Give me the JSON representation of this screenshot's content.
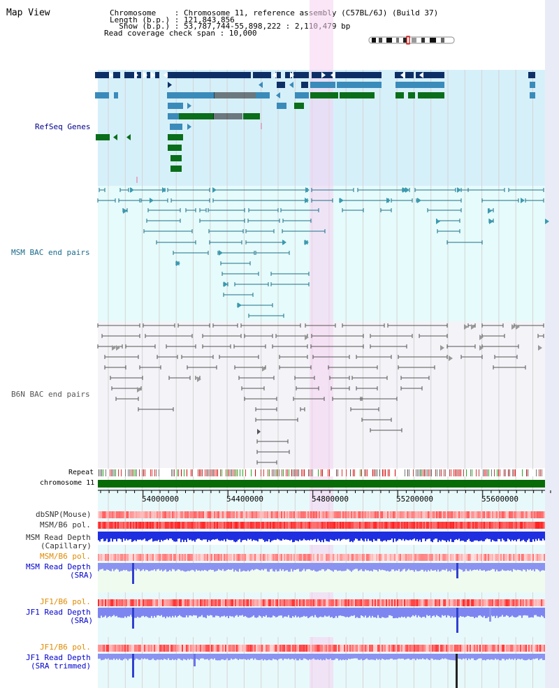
{
  "page": {
    "title": "Map View"
  },
  "header": {
    "chromosome_line": "Chromosome    : Chromosome 11, reference assembly (C57BL/6J) (Build 37)",
    "length_line": "Length (b.p.) : 121,843,856",
    "show_line": "  Show (b.p.) : 53,787,744-55,898,222 : 2,110,479 bp",
    "span_line": "Read coverage check span : 10,000"
  },
  "tracks": {
    "refseq": "RefSeq Genes",
    "msm_bac": "MSM BAC end pairs",
    "b6n_bac": "B6N BAC end pairs",
    "repeat": "Repeat",
    "chromosome": "chromosome 11",
    "dbsnp": "dbSNP(Mouse)",
    "msm_b6_pol_1": "MSM/B6 pol.",
    "msm_read_depth_cap": [
      "MSM Read Depth",
      "(Capillary)"
    ],
    "msm_b6_pol_2": "MSM/B6 pol.",
    "msm_read_depth_sra": [
      "MSM Read Depth",
      "(SRA)"
    ],
    "jf1_b6_pol_1": "JF1/B6 pol.",
    "jf1_read_depth_sra": [
      "JF1 Read Depth",
      "(SRA)"
    ],
    "jf1_b6_pol_2": "JF1/B6 pol.",
    "jf1_read_depth_trim": [
      "JF1 Read Depth",
      "(SRA trimmed)"
    ]
  },
  "axis": {
    "ticks": [
      "54000000",
      "54400000",
      "54800000",
      "55200000",
      "55600000"
    ]
  },
  "colors": {
    "refseq_bg": "#d6f0fa",
    "msm_bg": "#e6fbfb",
    "b6n_bg": "#f3f3f8",
    "highlight": "#f5d2f0",
    "refseq_label": "#00008b",
    "msm_label": "#1a6a8a",
    "b6n_label": "#555555",
    "pol_label": "#e08a00",
    "depth_label": "#0000cc",
    "gene_dark": "#0e2f66",
    "gene_mid": "#3a8bba",
    "gene_green": "#0a6e1a",
    "chrom_bar": "#086b08"
  }
}
